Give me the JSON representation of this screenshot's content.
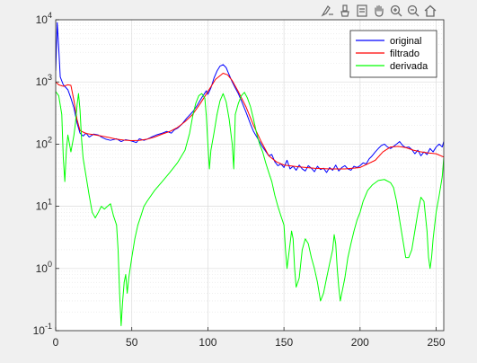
{
  "toolbar": {
    "icons": [
      "data-tips-icon",
      "brush-icon",
      "legend-toggle-icon",
      "pan-hand-icon",
      "zoom-in-icon",
      "zoom-out-icon",
      "home-icon"
    ]
  },
  "chart_data": {
    "type": "line",
    "title": "",
    "xlabel": "",
    "ylabel": "",
    "xlim": [
      0,
      255
    ],
    "ylim": [
      0.1,
      10000
    ],
    "yscale": "log",
    "grid": true,
    "minor_grid": true,
    "legend_position": "top-right",
    "x_ticks": [
      0,
      50,
      100,
      150,
      200,
      250
    ],
    "x_tick_labels": [
      "0",
      "50",
      "100",
      "150",
      "200",
      "250"
    ],
    "y_ticks": [
      0.1,
      1,
      10,
      100,
      1000,
      10000
    ],
    "y_tick_labels": [
      {
        "base": "10",
        "exp": "-1"
      },
      {
        "base": "10",
        "exp": "0"
      },
      {
        "base": "10",
        "exp": "1"
      },
      {
        "base": "10",
        "exp": "2"
      },
      {
        "base": "10",
        "exp": "3"
      },
      {
        "base": "10",
        "exp": "4"
      }
    ],
    "series": [
      {
        "name": "original",
        "color": "#0000ff",
        "points": [
          [
            0,
            1500
          ],
          [
            1,
            9000
          ],
          [
            2,
            3500
          ],
          [
            3,
            1200
          ],
          [
            5,
            900
          ],
          [
            8,
            750
          ],
          [
            10,
            550
          ],
          [
            12,
            380
          ],
          [
            14,
            220
          ],
          [
            16,
            150
          ],
          [
            18,
            135
          ],
          [
            20,
            150
          ],
          [
            22,
            130
          ],
          [
            25,
            145
          ],
          [
            28,
            140
          ],
          [
            30,
            130
          ],
          [
            33,
            120
          ],
          [
            36,
            115
          ],
          [
            40,
            122
          ],
          [
            43,
            110
          ],
          [
            46,
            118
          ],
          [
            50,
            112
          ],
          [
            53,
            106
          ],
          [
            55,
            122
          ],
          [
            58,
            115
          ],
          [
            60,
            120
          ],
          [
            63,
            130
          ],
          [
            66,
            140
          ],
          [
            70,
            150
          ],
          [
            73,
            160
          ],
          [
            76,
            150
          ],
          [
            78,
            170
          ],
          [
            80,
            180
          ],
          [
            83,
            210
          ],
          [
            86,
            260
          ],
          [
            90,
            330
          ],
          [
            93,
            420
          ],
          [
            96,
            560
          ],
          [
            99,
            720
          ],
          [
            100,
            630
          ],
          [
            102,
            800
          ],
          [
            104,
            1150
          ],
          [
            106,
            1500
          ],
          [
            108,
            1800
          ],
          [
            110,
            1900
          ],
          [
            112,
            1700
          ],
          [
            114,
            1300
          ],
          [
            116,
            1000
          ],
          [
            118,
            800
          ],
          [
            120,
            650
          ],
          [
            122,
            500
          ],
          [
            125,
            330
          ],
          [
            128,
            210
          ],
          [
            130,
            160
          ],
          [
            133,
            120
          ],
          [
            136,
            90
          ],
          [
            140,
            65
          ],
          [
            142,
            68
          ],
          [
            144,
            52
          ],
          [
            146,
            45
          ],
          [
            148,
            48
          ],
          [
            150,
            42
          ],
          [
            152,
            55
          ],
          [
            154,
            40
          ],
          [
            156,
            44
          ],
          [
            158,
            38
          ],
          [
            160,
            46
          ],
          [
            162,
            40
          ],
          [
            164,
            37
          ],
          [
            166,
            45
          ],
          [
            168,
            41
          ],
          [
            170,
            36
          ],
          [
            172,
            44
          ],
          [
            174,
            39
          ],
          [
            176,
            41
          ],
          [
            178,
            35
          ],
          [
            180,
            42
          ],
          [
            182,
            38
          ],
          [
            184,
            46
          ],
          [
            186,
            37
          ],
          [
            188,
            42
          ],
          [
            190,
            45
          ],
          [
            192,
            40
          ],
          [
            194,
            38
          ],
          [
            196,
            44
          ],
          [
            198,
            42
          ],
          [
            200,
            45
          ],
          [
            202,
            50
          ],
          [
            204,
            48
          ],
          [
            206,
            58
          ],
          [
            208,
            65
          ],
          [
            210,
            75
          ],
          [
            212,
            85
          ],
          [
            214,
            95
          ],
          [
            216,
            100
          ],
          [
            218,
            90
          ],
          [
            220,
            85
          ],
          [
            222,
            92
          ],
          [
            224,
            100
          ],
          [
            226,
            110
          ],
          [
            228,
            95
          ],
          [
            230,
            88
          ],
          [
            232,
            90
          ],
          [
            234,
            82
          ],
          [
            236,
            70
          ],
          [
            238,
            80
          ],
          [
            240,
            65
          ],
          [
            242,
            75
          ],
          [
            244,
            68
          ],
          [
            246,
            85
          ],
          [
            248,
            75
          ],
          [
            250,
            90
          ],
          [
            252,
            100
          ],
          [
            254,
            90
          ],
          [
            255,
            110
          ]
        ]
      },
      {
        "name": "filtrado",
        "color": "#ff0000",
        "points": [
          [
            0,
            1000
          ],
          [
            2,
            900
          ],
          [
            5,
            850
          ],
          [
            8,
            900
          ],
          [
            10,
            880
          ],
          [
            12,
            500
          ],
          [
            14,
            250
          ],
          [
            16,
            165
          ],
          [
            20,
            148
          ],
          [
            25,
            142
          ],
          [
            30,
            135
          ],
          [
            35,
            128
          ],
          [
            40,
            120
          ],
          [
            45,
            116
          ],
          [
            50,
            114
          ],
          [
            55,
            115
          ],
          [
            60,
            120
          ],
          [
            65,
            130
          ],
          [
            70,
            145
          ],
          [
            75,
            160
          ],
          [
            80,
            185
          ],
          [
            85,
            230
          ],
          [
            90,
            300
          ],
          [
            95,
            450
          ],
          [
            100,
            700
          ],
          [
            105,
            1100
          ],
          [
            110,
            1380
          ],
          [
            113,
            1300
          ],
          [
            116,
            1050
          ],
          [
            120,
            700
          ],
          [
            125,
            400
          ],
          [
            130,
            200
          ],
          [
            135,
            110
          ],
          [
            140,
            65
          ],
          [
            145,
            52
          ],
          [
            150,
            46
          ],
          [
            160,
            43
          ],
          [
            170,
            41
          ],
          [
            180,
            40
          ],
          [
            190,
            40
          ],
          [
            200,
            42
          ],
          [
            210,
            55
          ],
          [
            215,
            75
          ],
          [
            220,
            90
          ],
          [
            225,
            92
          ],
          [
            230,
            88
          ],
          [
            235,
            80
          ],
          [
            240,
            75
          ],
          [
            245,
            72
          ],
          [
            250,
            70
          ],
          [
            255,
            62
          ]
        ]
      },
      {
        "name": "derivada",
        "color": "#00ff00",
        "points": [
          [
            0,
            700
          ],
          [
            2,
            600
          ],
          [
            4,
            300
          ],
          [
            5,
            60
          ],
          [
            6,
            25
          ],
          [
            7,
            80
          ],
          [
            8,
            140
          ],
          [
            10,
            75
          ],
          [
            12,
            140
          ],
          [
            13,
            220
          ],
          [
            14,
            420
          ],
          [
            15,
            650
          ],
          [
            16,
            350
          ],
          [
            17,
            120
          ],
          [
            18,
            60
          ],
          [
            20,
            30
          ],
          [
            22,
            15
          ],
          [
            24,
            8
          ],
          [
            26,
            6.5
          ],
          [
            28,
            8
          ],
          [
            30,
            10
          ],
          [
            32,
            9
          ],
          [
            34,
            10
          ],
          [
            36,
            11
          ],
          [
            38,
            7
          ],
          [
            40,
            5
          ],
          [
            41,
            2
          ],
          [
            42,
            0.4
          ],
          [
            43,
            0.12
          ],
          [
            44,
            0.3
          ],
          [
            45,
            0.6
          ],
          [
            46,
            0.8
          ],
          [
            47,
            0.4
          ],
          [
            48,
            0.7
          ],
          [
            50,
            1.5
          ],
          [
            52,
            3
          ],
          [
            54,
            5
          ],
          [
            56,
            7
          ],
          [
            58,
            10
          ],
          [
            60,
            12
          ],
          [
            65,
            18
          ],
          [
            70,
            25
          ],
          [
            75,
            35
          ],
          [
            80,
            50
          ],
          [
            85,
            80
          ],
          [
            88,
            150
          ],
          [
            90,
            280
          ],
          [
            92,
            450
          ],
          [
            94,
            600
          ],
          [
            96,
            650
          ],
          [
            98,
            550
          ],
          [
            99,
            280
          ],
          [
            100,
            100
          ],
          [
            101,
            40
          ],
          [
            102,
            80
          ],
          [
            104,
            150
          ],
          [
            106,
            300
          ],
          [
            108,
            500
          ],
          [
            110,
            650
          ],
          [
            112,
            480
          ],
          [
            114,
            250
          ],
          [
            116,
            100
          ],
          [
            117,
            40
          ],
          [
            118,
            300
          ],
          [
            120,
            450
          ],
          [
            122,
            600
          ],
          [
            124,
            680
          ],
          [
            126,
            550
          ],
          [
            128,
            400
          ],
          [
            130,
            250
          ],
          [
            132,
            150
          ],
          [
            134,
            100
          ],
          [
            136,
            75
          ],
          [
            138,
            50
          ],
          [
            140,
            35
          ],
          [
            142,
            25
          ],
          [
            144,
            15
          ],
          [
            146,
            10
          ],
          [
            148,
            7
          ],
          [
            150,
            5
          ],
          [
            151,
            2
          ],
          [
            152,
            1
          ],
          [
            154,
            2.5
          ],
          [
            155,
            4
          ],
          [
            156,
            3
          ],
          [
            157,
            1
          ],
          [
            158,
            0.5
          ],
          [
            160,
            0.7
          ],
          [
            162,
            2
          ],
          [
            164,
            3
          ],
          [
            166,
            2.5
          ],
          [
            168,
            1.5
          ],
          [
            170,
            1
          ],
          [
            172,
            0.6
          ],
          [
            174,
            0.3
          ],
          [
            176,
            0.4
          ],
          [
            178,
            0.7
          ],
          [
            180,
            1.2
          ],
          [
            182,
            2
          ],
          [
            183,
            3.5
          ],
          [
            184,
            2.5
          ],
          [
            185,
            1
          ],
          [
            186,
            0.5
          ],
          [
            187,
            0.3
          ],
          [
            188,
            0.4
          ],
          [
            190,
            0.7
          ],
          [
            192,
            1.5
          ],
          [
            194,
            2.5
          ],
          [
            196,
            4
          ],
          [
            198,
            6
          ],
          [
            200,
            8
          ],
          [
            202,
            12
          ],
          [
            205,
            18
          ],
          [
            208,
            22
          ],
          [
            212,
            26
          ],
          [
            216,
            27
          ],
          [
            220,
            24
          ],
          [
            222,
            20
          ],
          [
            224,
            12
          ],
          [
            226,
            6
          ],
          [
            228,
            3
          ],
          [
            230,
            1.5
          ],
          [
            232,
            1.5
          ],
          [
            234,
            2
          ],
          [
            236,
            4
          ],
          [
            238,
            8
          ],
          [
            240,
            14
          ],
          [
            242,
            12
          ],
          [
            244,
            4
          ],
          [
            245,
            1.5
          ],
          [
            246,
            1
          ],
          [
            247,
            1.5
          ],
          [
            248,
            3
          ],
          [
            250,
            8
          ],
          [
            252,
            15
          ],
          [
            254,
            30
          ],
          [
            255,
            60
          ]
        ]
      }
    ]
  }
}
